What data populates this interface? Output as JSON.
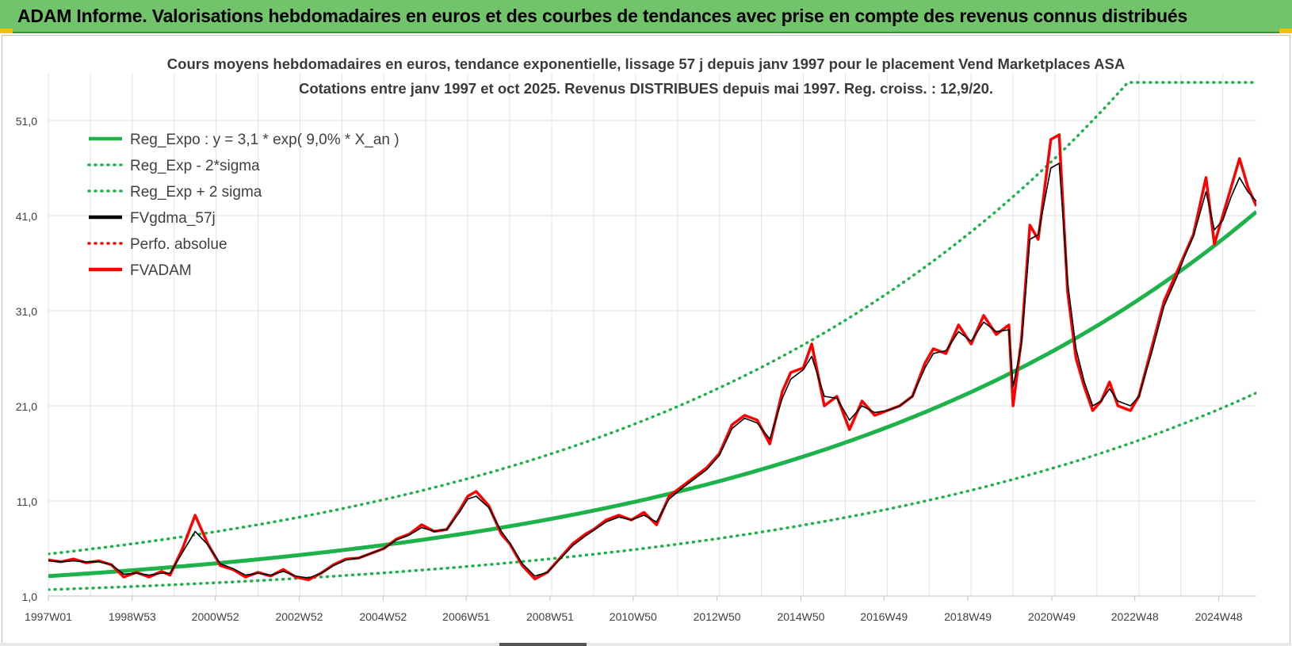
{
  "banner": {
    "title": "ADAM Informe. Valorisations hebdomadaires en euros et des courbes de tendances avec prise en compte des revenus connus distribués"
  },
  "colors": {
    "banner_bg": "#71c46a",
    "green": "#1db24a",
    "red": "#ff0000",
    "black": "#000000",
    "corner_accent": "#f2c200"
  },
  "chart_data": {
    "type": "line",
    "title": "Cours moyens hebdomadaires en euros, tendance exponentielle, lissage 57 j depuis janv 1997 pour le placement Vend Marketplaces ASA",
    "subtitle": "Cotations entre janv 1997 et oct 2025. Revenus DISTRIBUES depuis mai 1997. Reg. croiss. : 12,9/20.",
    "xlabel": "",
    "ylabel": "",
    "x_range": [
      1997.0,
      2025.8
    ],
    "ylim": [
      1,
      57
    ],
    "y_ticks": [
      "1,0",
      "11,0",
      "21,0",
      "31,0",
      "41,0",
      "51,0"
    ],
    "x_ticks": [
      "1997W01",
      "1998W53",
      "2000W52",
      "2002W52",
      "2004W52",
      "2006W51",
      "2008W51",
      "2010W50",
      "2012W50",
      "2014W50",
      "2016W49",
      "2018W49",
      "2020W49",
      "2022W48",
      "2024W48"
    ],
    "grid": true,
    "legend_position": "top-left",
    "legend": [
      {
        "label": "Reg_Expo : y = 3,1 * exp( 9,0% *  X_an )",
        "style": "solid",
        "color": "#1db24a"
      },
      {
        "label": "Reg_Exp - 2*sigma",
        "style": "dotted",
        "color": "#1db24a"
      },
      {
        "label": "Reg_Exp + 2 sigma",
        "style": "dotted",
        "color": "#1db24a"
      },
      {
        "label": "FVgdma_57j",
        "style": "solid",
        "color": "#000000"
      },
      {
        "label": "Perfo. absolue",
        "style": "dotted",
        "color": "#ff0000"
      },
      {
        "label": "FVADAM",
        "style": "solid",
        "color": "#ff0000"
      }
    ],
    "regression": {
      "a": 3.1,
      "rate": 0.09,
      "minus2sigma_factor": 0.54,
      "plus2sigma_factor": 1.75
    },
    "series": [
      {
        "name": "FVADAM",
        "x": [
          1997.0,
          1997.3,
          1997.6,
          1997.9,
          1998.2,
          1998.5,
          1998.8,
          1999.1,
          1999.4,
          1999.7,
          1999.9,
          2000.2,
          2000.5,
          2000.8,
          2001.1,
          2001.4,
          2001.7,
          2002.0,
          2002.3,
          2002.6,
          2002.9,
          2003.2,
          2003.5,
          2003.8,
          2004.1,
          2004.4,
          2004.7,
          2005.0,
          2005.3,
          2005.6,
          2005.9,
          2006.2,
          2006.5,
          2006.8,
          2007.0,
          2007.2,
          2007.5,
          2007.8,
          2008.0,
          2008.3,
          2008.6,
          2008.9,
          2009.2,
          2009.5,
          2009.8,
          2010.0,
          2010.3,
          2010.6,
          2010.9,
          2011.2,
          2011.5,
          2011.8,
          2012.1,
          2012.4,
          2012.7,
          2013.0,
          2013.3,
          2013.6,
          2013.9,
          2014.2,
          2014.5,
          2014.7,
          2015.0,
          2015.2,
          2015.5,
          2015.8,
          2016.1,
          2016.4,
          2016.7,
          2017.0,
          2017.3,
          2017.6,
          2017.9,
          2018.1,
          2018.4,
          2018.7,
          2019.0,
          2019.3,
          2019.6,
          2019.9,
          2020.0,
          2020.2,
          2020.4,
          2020.6,
          2020.9,
          2021.1,
          2021.3,
          2021.5,
          2021.7,
          2021.9,
          2022.1,
          2022.3,
          2022.5,
          2022.8,
          2023.0,
          2023.3,
          2023.6,
          2023.9,
          2024.1,
          2024.3,
          2024.6,
          2024.8,
          2025.0,
          2025.2,
          2025.4,
          2025.6,
          2025.8
        ],
        "y": [
          4.8,
          4.6,
          4.9,
          4.5,
          4.7,
          4.3,
          3.0,
          3.5,
          3.0,
          3.6,
          3.2,
          6.0,
          9.5,
          6.5,
          4.2,
          3.8,
          3.0,
          3.5,
          3.1,
          3.8,
          3.0,
          2.7,
          3.4,
          4.3,
          4.9,
          5.0,
          5.5,
          6.0,
          7.0,
          7.5,
          8.5,
          7.8,
          8.0,
          10.0,
          11.5,
          12.0,
          10.5,
          7.5,
          6.5,
          4.2,
          2.8,
          3.5,
          5.0,
          6.5,
          7.5,
          8.0,
          9.0,
          9.5,
          9.0,
          9.8,
          8.5,
          11.5,
          12.5,
          13.5,
          14.5,
          16.0,
          19.0,
          20.0,
          19.5,
          17.0,
          22.5,
          24.5,
          25.0,
          27.5,
          21.0,
          22.0,
          18.5,
          21.5,
          20.0,
          20.5,
          21.0,
          22.0,
          25.5,
          27.0,
          26.5,
          29.5,
          27.5,
          30.5,
          28.5,
          29.5,
          21.0,
          28.0,
          40.0,
          38.5,
          49.0,
          49.5,
          33.0,
          26.0,
          23.0,
          20.5,
          21.5,
          23.5,
          21.0,
          20.5,
          22.0,
          27.0,
          32.0,
          35.0,
          37.0,
          39.0,
          45.0,
          38.0,
          41.0,
          44.0,
          47.0,
          44.0,
          42.0
        ]
      },
      {
        "name": "FVgdma_57j",
        "x": [
          1997.0,
          1997.3,
          1997.6,
          1997.9,
          1998.2,
          1998.5,
          1998.8,
          1999.1,
          1999.4,
          1999.7,
          1999.9,
          2000.2,
          2000.5,
          2000.8,
          2001.1,
          2001.4,
          2001.7,
          2002.0,
          2002.3,
          2002.6,
          2002.9,
          2003.2,
          2003.5,
          2003.8,
          2004.1,
          2004.4,
          2004.7,
          2005.0,
          2005.3,
          2005.6,
          2005.9,
          2006.2,
          2006.5,
          2006.8,
          2007.0,
          2007.2,
          2007.5,
          2007.8,
          2008.0,
          2008.3,
          2008.6,
          2008.9,
          2009.2,
          2009.5,
          2009.8,
          2010.0,
          2010.3,
          2010.6,
          2010.9,
          2011.2,
          2011.5,
          2011.8,
          2012.1,
          2012.4,
          2012.7,
          2013.0,
          2013.3,
          2013.6,
          2013.9,
          2014.2,
          2014.5,
          2014.7,
          2015.0,
          2015.2,
          2015.5,
          2015.8,
          2016.1,
          2016.4,
          2016.7,
          2017.0,
          2017.3,
          2017.6,
          2017.9,
          2018.1,
          2018.4,
          2018.7,
          2019.0,
          2019.3,
          2019.6,
          2019.9,
          2020.0,
          2020.2,
          2020.4,
          2020.6,
          2020.9,
          2021.1,
          2021.3,
          2021.5,
          2021.7,
          2021.9,
          2022.1,
          2022.3,
          2022.5,
          2022.8,
          2023.0,
          2023.3,
          2023.6,
          2023.9,
          2024.1,
          2024.3,
          2024.6,
          2024.8,
          2025.0,
          2025.2,
          2025.4,
          2025.6,
          2025.8
        ],
        "y": [
          4.7,
          4.6,
          4.7,
          4.6,
          4.6,
          4.3,
          3.3,
          3.4,
          3.2,
          3.4,
          3.4,
          5.6,
          7.8,
          6.4,
          4.4,
          3.9,
          3.2,
          3.4,
          3.2,
          3.6,
          3.1,
          2.9,
          3.4,
          4.2,
          4.8,
          5.0,
          5.5,
          6.0,
          6.9,
          7.4,
          8.2,
          7.8,
          8.0,
          9.8,
          11.2,
          11.5,
          10.3,
          7.8,
          6.6,
          4.4,
          3.1,
          3.5,
          4.9,
          6.3,
          7.3,
          7.9,
          8.8,
          9.3,
          9.0,
          9.5,
          8.8,
          11.2,
          12.3,
          13.3,
          14.3,
          15.8,
          18.6,
          19.7,
          19.2,
          17.5,
          21.8,
          23.8,
          24.8,
          26.2,
          22.0,
          21.8,
          19.5,
          21.0,
          20.3,
          20.5,
          21.0,
          22.0,
          25.0,
          26.5,
          26.8,
          28.8,
          27.8,
          29.8,
          28.8,
          29.0,
          23.0,
          27.5,
          38.5,
          39.0,
          46.0,
          46.5,
          34.0,
          27.0,
          23.5,
          21.0,
          21.5,
          22.8,
          21.5,
          21.0,
          22.0,
          26.5,
          31.5,
          34.5,
          36.8,
          38.8,
          43.5,
          39.5,
          40.5,
          43.0,
          45.0,
          43.5,
          42.5
        ]
      }
    ]
  }
}
